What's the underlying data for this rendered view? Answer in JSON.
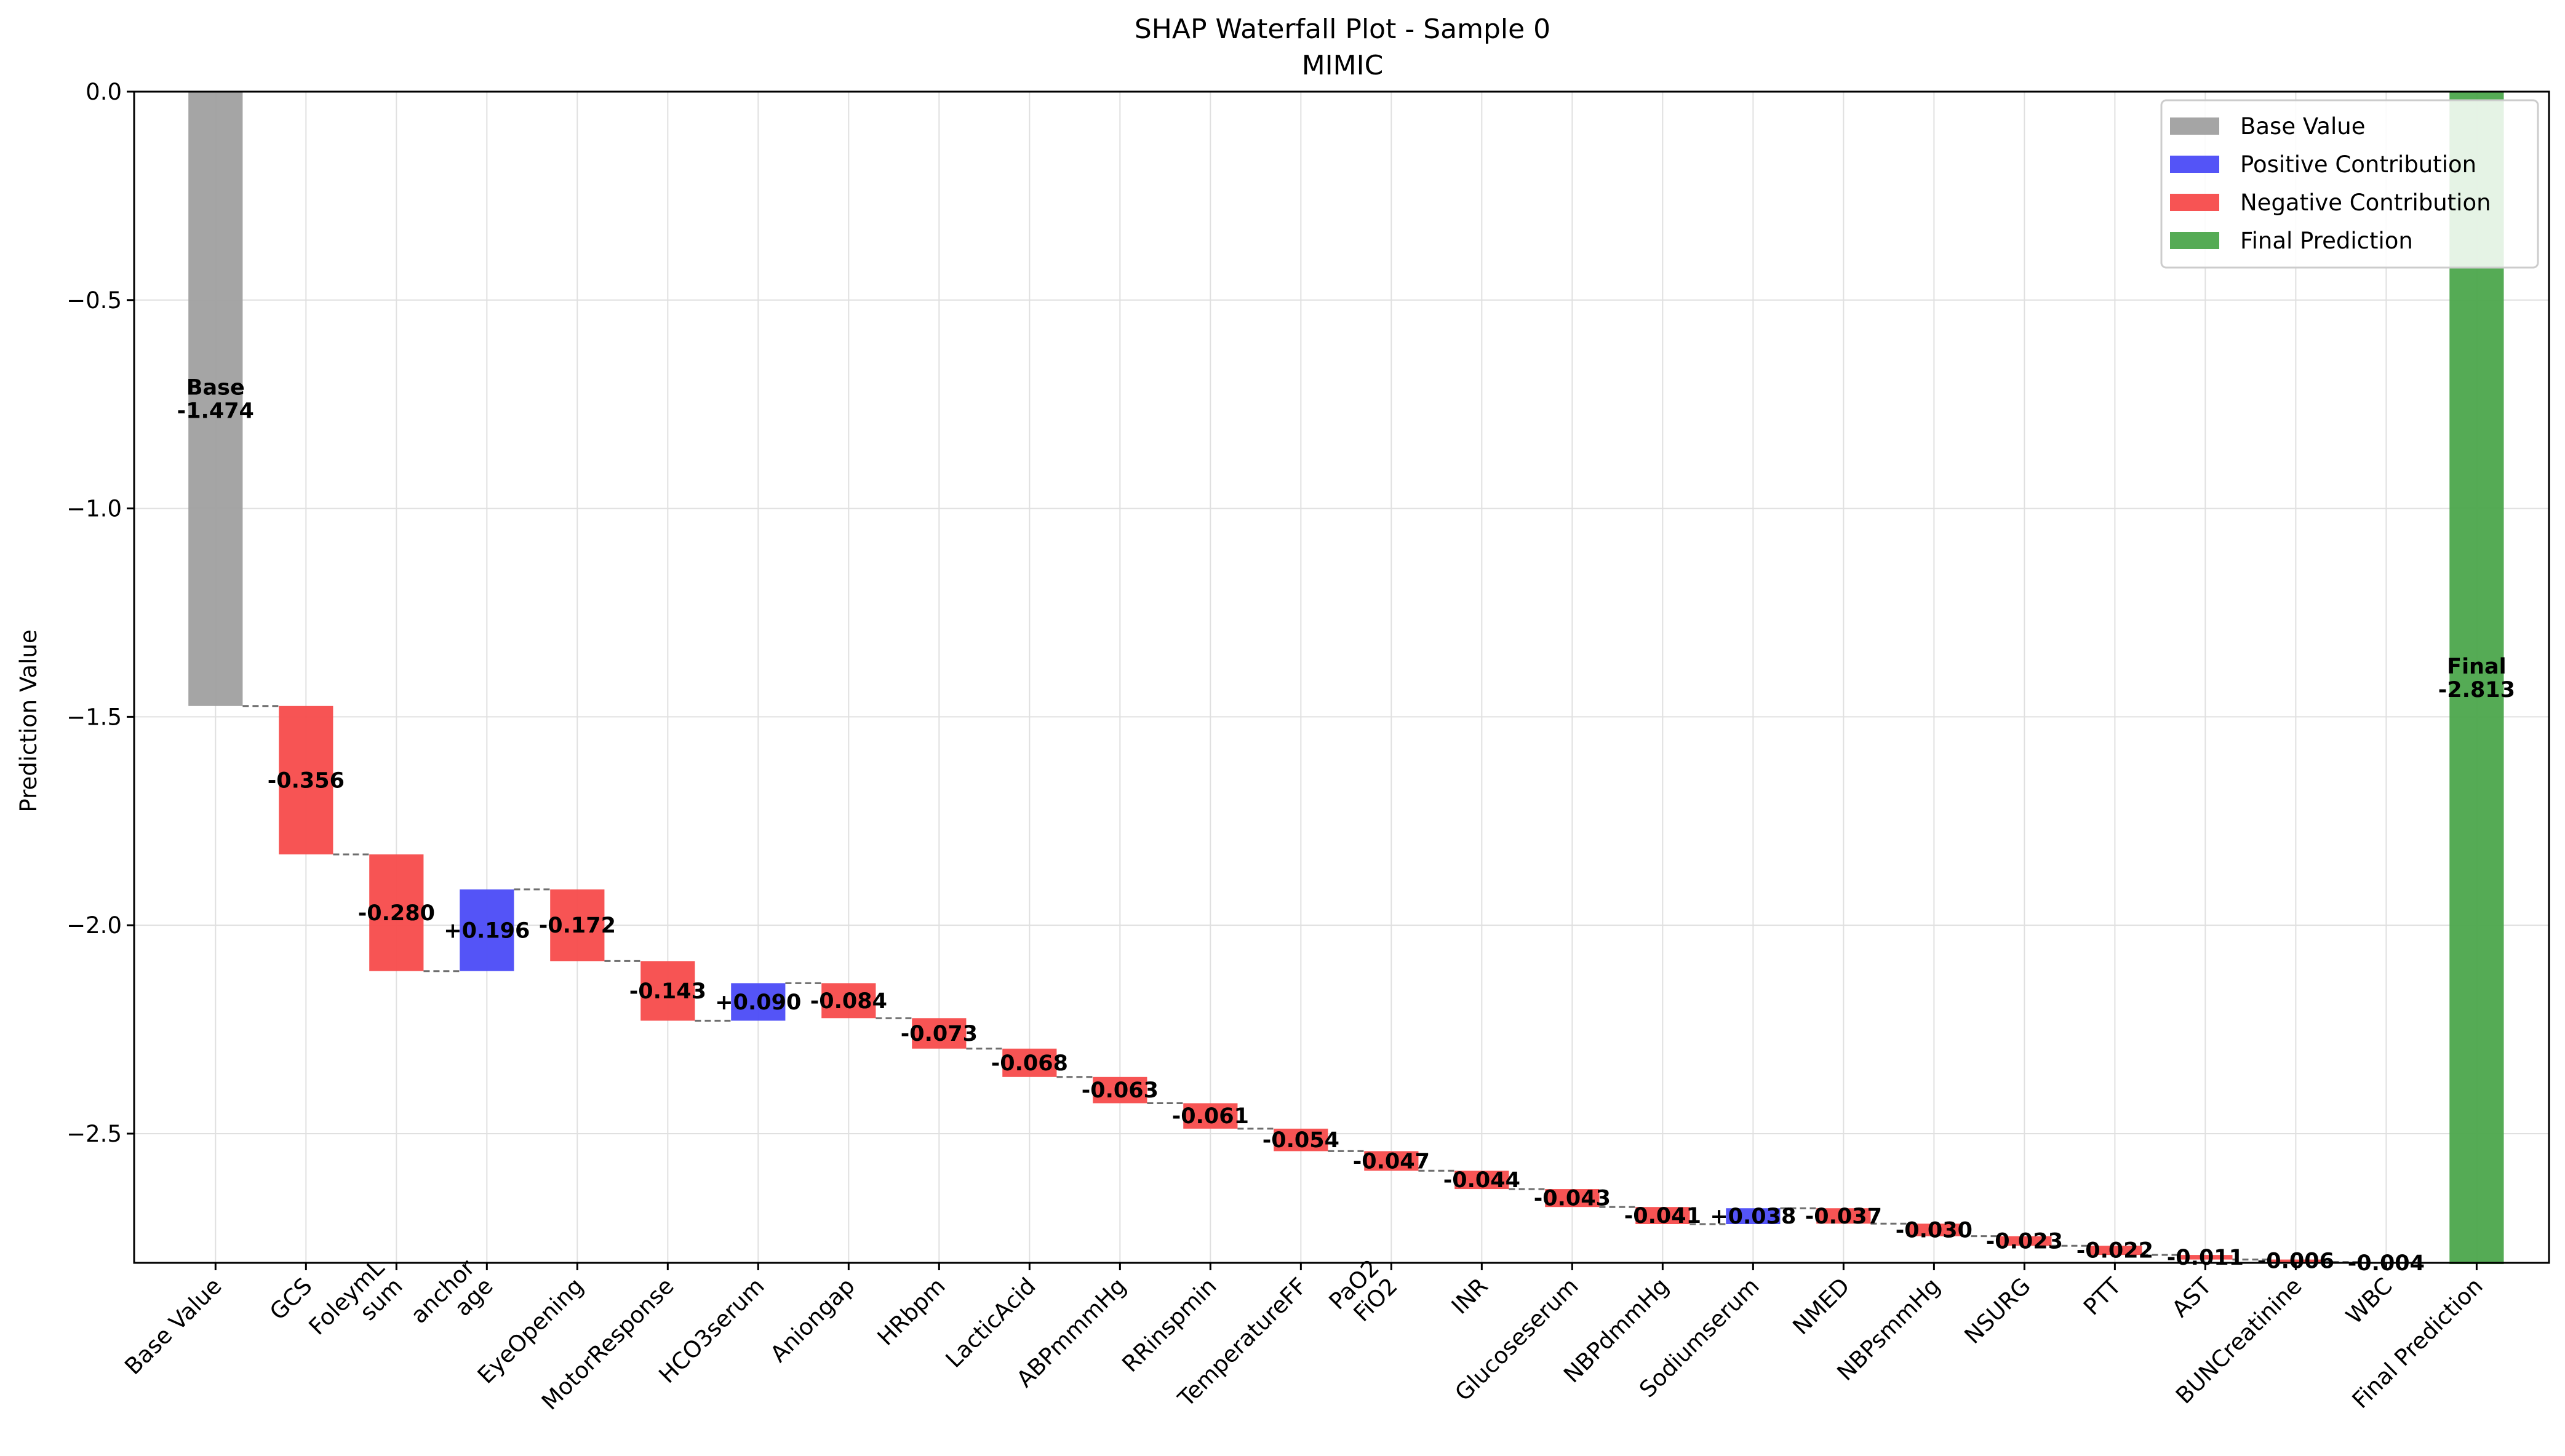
{
  "chart_data": {
    "type": "bar",
    "subtype": "waterfall",
    "title": "SHAP Waterfall Plot - Sample 0",
    "subtitle": "MIMIC",
    "xlabel": "",
    "ylabel": "Prediction Value",
    "ylim": [
      -2.81,
      0.0
    ],
    "yticks": [
      {
        "value": 0.0,
        "label": "0.0"
      },
      {
        "value": -0.5,
        "label": "−0.5"
      },
      {
        "value": -1.0,
        "label": "−1.0"
      },
      {
        "value": -1.5,
        "label": "−1.5"
      },
      {
        "value": -2.0,
        "label": "−2.0"
      },
      {
        "value": -2.5,
        "label": "−2.5"
      }
    ],
    "grid": true,
    "legend_position": "top-right",
    "colors": {
      "base": "#a0a0a0",
      "positive": "#4b4bf7",
      "negative": "#f74b4b",
      "final": "#4ca64c",
      "connector": "#6e6e6e"
    },
    "legend": [
      {
        "kind": "base",
        "label": "Base Value"
      },
      {
        "kind": "positive",
        "label": "Positive Contribution"
      },
      {
        "kind": "negative",
        "label": "Negative Contribution"
      },
      {
        "kind": "final",
        "label": "Final Prediction"
      }
    ],
    "base_value": -1.474,
    "final_value": -2.813,
    "bars": [
      {
        "category": "Base Value",
        "kind": "base",
        "value": -1.474,
        "label": "Base\n-1.474"
      },
      {
        "category": "GCS",
        "kind": "negative",
        "value": -0.356,
        "label": "-0.356"
      },
      {
        "category": "FoleymL\nsum",
        "kind": "negative",
        "value": -0.28,
        "label": "-0.280"
      },
      {
        "category": "anchor\nage",
        "kind": "positive",
        "value": 0.196,
        "label": "+0.196"
      },
      {
        "category": "EyeOpening",
        "kind": "negative",
        "value": -0.172,
        "label": "-0.172"
      },
      {
        "category": "MotorResponse",
        "kind": "negative",
        "value": -0.143,
        "label": "-0.143"
      },
      {
        "category": "HCO3serum",
        "kind": "positive",
        "value": 0.09,
        "label": "+0.090"
      },
      {
        "category": "Aniongap",
        "kind": "negative",
        "value": -0.084,
        "label": "-0.084"
      },
      {
        "category": "HRbpm",
        "kind": "negative",
        "value": -0.073,
        "label": "-0.073"
      },
      {
        "category": "LacticAcid",
        "kind": "negative",
        "value": -0.068,
        "label": "-0.068"
      },
      {
        "category": "ABPmmmHg",
        "kind": "negative",
        "value": -0.063,
        "label": "-0.063"
      },
      {
        "category": "RRinspmin",
        "kind": "negative",
        "value": -0.061,
        "label": "-0.061"
      },
      {
        "category": "TemperatureFF",
        "kind": "negative",
        "value": -0.054,
        "label": "-0.054"
      },
      {
        "category": "PaO2\nFiO2",
        "kind": "negative",
        "value": -0.047,
        "label": "-0.047"
      },
      {
        "category": "INR",
        "kind": "negative",
        "value": -0.044,
        "label": "-0.044"
      },
      {
        "category": "Glucoseserum",
        "kind": "negative",
        "value": -0.043,
        "label": "-0.043"
      },
      {
        "category": "NBPdmmHg",
        "kind": "negative",
        "value": -0.041,
        "label": "-0.041"
      },
      {
        "category": "Sodiumserum",
        "kind": "positive",
        "value": 0.038,
        "label": "+0.038"
      },
      {
        "category": "NMED",
        "kind": "negative",
        "value": -0.037,
        "label": "-0.037"
      },
      {
        "category": "NBPsmmHg",
        "kind": "negative",
        "value": -0.03,
        "label": "-0.030"
      },
      {
        "category": "NSURG",
        "kind": "negative",
        "value": -0.023,
        "label": "-0.023"
      },
      {
        "category": "PTT",
        "kind": "negative",
        "value": -0.022,
        "label": "-0.022"
      },
      {
        "category": "AST",
        "kind": "negative",
        "value": -0.011,
        "label": "-0.011"
      },
      {
        "category": "BUNCreatinine",
        "kind": "negative",
        "value": -0.006,
        "label": "-0.006"
      },
      {
        "category": "WBC",
        "kind": "negative",
        "value": -0.004,
        "label": "-0.004"
      },
      {
        "category": "Final Prediction",
        "kind": "final",
        "value": -2.813,
        "label": "Final\n-2.813"
      }
    ]
  }
}
